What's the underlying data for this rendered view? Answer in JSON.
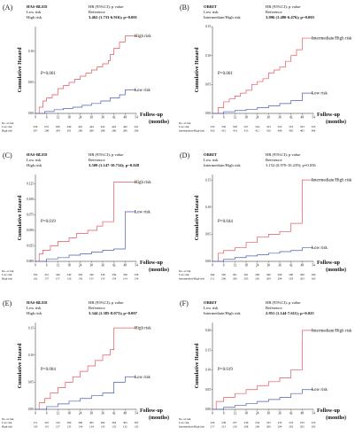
{
  "chart_data": [
    {
      "panel": "(A)",
      "type": "line",
      "score": "HAS-BLED",
      "stat_header": "HR (95%CI); p value",
      "rows": [
        {
          "group": "Low risk",
          "value": "Reference",
          "bold": false
        },
        {
          "group": "High risk",
          "value": "3.462 (1.733-6.916); p=0.001",
          "bold": true
        }
      ],
      "pvalue": "P=0.001",
      "ylabel": "Cumulative Hazard",
      "xlabel": "Follow-up (months)",
      "x_ticks": [
        0,
        6,
        12,
        18,
        24,
        30,
        36,
        42,
        48,
        54
      ],
      "y_ticks": [
        0.0,
        0.05,
        0.1
      ],
      "ylim": [
        0,
        0.14
      ],
      "xlim": [
        0,
        54
      ],
      "at_risk_title": "No. at risk",
      "at_risk": [
        {
          "group": "Low risk",
          "values": [
            "634",
            "631",
            "630",
            "449",
            "445",
            "444",
            "443",
            "442",
            "442",
            "441"
          ]
        },
        {
          "group": "High risk",
          "values": [
            "307",
            "298",
            "294",
            "291",
            "290",
            "289",
            "288",
            "286",
            "286",
            "286"
          ]
        }
      ],
      "series": [
        {
          "name": "High risk",
          "color": "#e8545c",
          "x": [
            0,
            2,
            4,
            6,
            9,
            12,
            15,
            18,
            21,
            24,
            27,
            30,
            33,
            36,
            39,
            40,
            42,
            45,
            48,
            54
          ],
          "y": [
            0,
            0.01,
            0.02,
            0.025,
            0.03,
            0.04,
            0.045,
            0.05,
            0.055,
            0.06,
            0.065,
            0.07,
            0.075,
            0.08,
            0.085,
            0.095,
            0.105,
            0.115,
            0.125,
            0.125
          ]
        },
        {
          "name": "Low risk",
          "color": "#4a5fb5",
          "x": [
            0,
            5,
            10,
            15,
            20,
            25,
            30,
            35,
            40,
            45,
            48,
            54
          ],
          "y": [
            0,
            0.003,
            0.006,
            0.008,
            0.01,
            0.013,
            0.016,
            0.02,
            0.025,
            0.03,
            0.038,
            0.038
          ]
        }
      ]
    },
    {
      "panel": "(B)",
      "type": "line",
      "score": "ORBIT",
      "stat_header": "HR (95%CI); p value",
      "rows": [
        {
          "group": "Low risk",
          "value": "Reference",
          "bold": false
        },
        {
          "group": "Intermediate/High risk",
          "value": "3.096 (1.480-6.476); p=0.003",
          "bold": true
        }
      ],
      "pvalue": "P=0.001",
      "ylabel": "Cumulative Hazard",
      "xlabel": "Follow-up (months)",
      "x_ticks": [
        0,
        6,
        12,
        18,
        24,
        30,
        36,
        42,
        48,
        54
      ],
      "y_ticks": [
        0.0,
        0.05,
        0.1,
        0.15
      ],
      "ylim": [
        0,
        0.15
      ],
      "xlim": [
        0,
        54
      ],
      "at_risk_title": "No. at risk",
      "at_risk": [
        {
          "group": "Low risk",
          "values": [
            "533",
            "530",
            "528",
            "527",
            "524",
            "523",
            "523",
            "523",
            "523",
            "523"
          ]
        },
        {
          "group": "Intermediate/High risk",
          "values": [
            "420",
            "415",
            "414",
            "413",
            "411",
            "410",
            "408",
            "405",
            "405",
            "404"
          ]
        }
      ],
      "series": [
        {
          "name": "Intermediate/High risk",
          "color": "#e8545c",
          "x": [
            0,
            3,
            6,
            9,
            12,
            15,
            18,
            21,
            24,
            27,
            30,
            33,
            36,
            39,
            42,
            45,
            48,
            54
          ],
          "y": [
            0,
            0.01,
            0.02,
            0.025,
            0.03,
            0.035,
            0.04,
            0.05,
            0.055,
            0.06,
            0.07,
            0.075,
            0.08,
            0.09,
            0.1,
            0.11,
            0.13,
            0.13
          ]
        },
        {
          "name": "Low risk",
          "color": "#4a5fb5",
          "x": [
            0,
            6,
            12,
            18,
            24,
            30,
            36,
            42,
            48,
            54
          ],
          "y": [
            0,
            0.003,
            0.005,
            0.007,
            0.01,
            0.013,
            0.017,
            0.022,
            0.035,
            0.035
          ]
        }
      ]
    },
    {
      "panel": "(C)",
      "type": "line",
      "score": "HAS-BLED",
      "stat_header": "HR (95%CI); p value",
      "rows": [
        {
          "group": "Low risk",
          "value": "Reference",
          "bold": false
        },
        {
          "group": "High risk",
          "value": "3.509 (1.147-10.734); p=0.028",
          "bold": true
        }
      ],
      "pvalue": "P=0.019",
      "ylabel": "Cumulative Hazard",
      "xlabel": "Follow-up (months)",
      "x_ticks": [
        0,
        6,
        12,
        18,
        24,
        30,
        36,
        42,
        48,
        54
      ],
      "y_ticks": [
        0.0,
        0.025,
        0.05,
        0.075,
        0.1,
        0.125
      ],
      "ylim": [
        0,
        0.14
      ],
      "xlim": [
        0,
        54
      ],
      "at_risk_title": "No. at risk",
      "at_risk": [
        {
          "group": "Low risk",
          "values": [
            "343",
            "341",
            "340",
            "340",
            "339",
            "339",
            "339",
            "339",
            "339",
            "339"
          ]
        },
        {
          "group": "High risk",
          "values": [
            "162",
            "157",
            "157",
            "156",
            "156",
            "155",
            "155",
            "154",
            "154",
            "154"
          ]
        }
      ],
      "series": [
        {
          "name": "High risk",
          "color": "#e8545c",
          "x": [
            0,
            2,
            4,
            8,
            12,
            18,
            22,
            28,
            33,
            36,
            40,
            42,
            48,
            54
          ],
          "y": [
            0,
            0.012,
            0.018,
            0.025,
            0.032,
            0.038,
            0.045,
            0.05,
            0.057,
            0.064,
            0.064,
            0.128,
            0.128,
            0.128
          ]
        },
        {
          "name": "Low risk",
          "color": "#4a5fb5",
          "x": [
            0,
            6,
            12,
            18,
            24,
            30,
            36,
            42,
            48,
            54
          ],
          "y": [
            0,
            0.004,
            0.006,
            0.01,
            0.012,
            0.015,
            0.018,
            0.02,
            0.08,
            0.08
          ]
        }
      ]
    },
    {
      "panel": "(D)",
      "type": "line",
      "score": "ORBIT",
      "stat_header": "HR (95%CI); p value",
      "rows": [
        {
          "group": "Low risk",
          "value": "Reference",
          "bold": false
        },
        {
          "group": "Intermediate/High risk",
          "value": "3.152 (0.970-10.239); p=0.056",
          "bold": false
        }
      ],
      "pvalue": "P=0.044",
      "ylabel": "Cumulative Hazard",
      "xlabel": "Follow-up (months)",
      "x_ticks": [
        0,
        6,
        12,
        18,
        24,
        30,
        36,
        42,
        48,
        54
      ],
      "y_ticks": [
        0.0,
        0.05,
        0.1,
        0.15
      ],
      "ylim": [
        0,
        0.16
      ],
      "xlim": [
        0,
        54
      ],
      "at_risk_title": "No. at risk",
      "at_risk": [
        {
          "group": "Low risk",
          "values": [
            "294",
            "292",
            "291",
            "291",
            "290",
            "290",
            "290",
            "290",
            "290",
            "290"
          ]
        },
        {
          "group": "Intermediate/High risk",
          "values": [
            "211",
            "206",
            "206",
            "205",
            "205",
            "204",
            "204",
            "203",
            "203",
            "203"
          ]
        }
      ],
      "series": [
        {
          "name": "Intermediate/High risk",
          "color": "#e8545c",
          "x": [
            0,
            3,
            6,
            12,
            18,
            24,
            30,
            36,
            42,
            48,
            54
          ],
          "y": [
            0,
            0.015,
            0.02,
            0.025,
            0.035,
            0.045,
            0.05,
            0.055,
            0.07,
            0.15,
            0.15
          ]
        },
        {
          "name": "Low risk",
          "color": "#4a5fb5",
          "x": [
            0,
            6,
            12,
            18,
            24,
            30,
            36,
            42,
            48,
            54
          ],
          "y": [
            0,
            0.004,
            0.007,
            0.01,
            0.012,
            0.015,
            0.018,
            0.02,
            0.025,
            0.025
          ]
        }
      ]
    },
    {
      "panel": "(E)",
      "type": "line",
      "score": "HAS-BLED",
      "stat_header": "HR (95%CI); p value",
      "rows": [
        {
          "group": "Low risk",
          "value": "Reference",
          "bold": false
        },
        {
          "group": "High risk",
          "value": "3.344 (1.385-8.073); p=0.007",
          "bold": true
        }
      ],
      "pvalue": "P=0.004",
      "ylabel": "Cumulative Hazard",
      "xlabel": "Follow-up (months)",
      "x_ticks": [
        0,
        6,
        12,
        18,
        24,
        30,
        36,
        42,
        48,
        54
      ],
      "y_ticks": [
        0.0,
        0.05,
        0.1,
        0.15
      ],
      "ylim": [
        0,
        0.16
      ],
      "xlim": [
        0,
        54
      ],
      "at_risk_title": "No. at risk",
      "at_risk": [
        {
          "group": "Low risk",
          "values": [
            "311",
            "310",
            "310",
            "309",
            "306",
            "305",
            "304",
            "303",
            "303",
            "303"
          ]
        },
        {
          "group": "High risk",
          "values": [
            "145",
            "141",
            "137",
            "135",
            "134",
            "134",
            "133",
            "132",
            "132",
            "132"
          ]
        }
      ],
      "series": [
        {
          "name": "High risk",
          "color": "#e8545c",
          "x": [
            0,
            2,
            5,
            8,
            12,
            16,
            20,
            24,
            28,
            32,
            36,
            40,
            42,
            48,
            54
          ],
          "y": [
            0,
            0.012,
            0.02,
            0.03,
            0.04,
            0.05,
            0.06,
            0.07,
            0.08,
            0.09,
            0.1,
            0.11,
            0.15,
            0.15,
            0.15
          ]
        },
        {
          "name": "Low risk",
          "color": "#4a5fb5",
          "x": [
            0,
            6,
            12,
            18,
            24,
            30,
            36,
            42,
            48,
            54
          ],
          "y": [
            0,
            0.005,
            0.01,
            0.015,
            0.02,
            0.025,
            0.03,
            0.05,
            0.06,
            0.06
          ]
        }
      ]
    },
    {
      "panel": "(F)",
      "type": "line",
      "score": "ORBIT",
      "stat_header": "HR (95%CI); p value",
      "rows": [
        {
          "group": "Low risk",
          "value": "Reference",
          "bold": false
        },
        {
          "group": "Intermediate/High risk",
          "value": "2.951 (1.144-7.611); p=0.025",
          "bold": true
        }
      ],
      "pvalue": "P=0.019",
      "ylabel": "Cumulative Hazard",
      "xlabel": "Follow-up (months)",
      "x_ticks": [
        0,
        6,
        12,
        18,
        24,
        30,
        36,
        42,
        48,
        54
      ],
      "y_ticks": [
        0.0,
        0.05,
        0.1,
        0.15,
        0.2
      ],
      "ylim": [
        0,
        0.22
      ],
      "xlim": [
        0,
        54
      ],
      "at_risk_title": "No. at risk",
      "at_risk": [
        {
          "group": "Low risk",
          "values": [
            "239",
            "238",
            "237",
            "236",
            "234",
            "233",
            "233",
            "233",
            "233",
            "233"
          ]
        },
        {
          "group": "Intermediate/High risk",
          "values": [
            "217",
            "213",
            "210",
            "208",
            "206",
            "206",
            "204",
            "202",
            "202",
            "202"
          ]
        }
      ],
      "series": [
        {
          "name": "Intermediate/High risk",
          "color": "#e8545c",
          "x": [
            0,
            2,
            6,
            12,
            18,
            24,
            30,
            36,
            42,
            48,
            54
          ],
          "y": [
            0,
            0.02,
            0.03,
            0.04,
            0.05,
            0.06,
            0.07,
            0.08,
            0.1,
            0.2,
            0.2
          ]
        },
        {
          "name": "Low risk",
          "color": "#4a5fb5",
          "x": [
            0,
            6,
            12,
            18,
            24,
            30,
            36,
            42,
            48,
            54
          ],
          "y": [
            0,
            0.005,
            0.01,
            0.015,
            0.02,
            0.025,
            0.03,
            0.04,
            0.05,
            0.05
          ]
        }
      ]
    }
  ]
}
